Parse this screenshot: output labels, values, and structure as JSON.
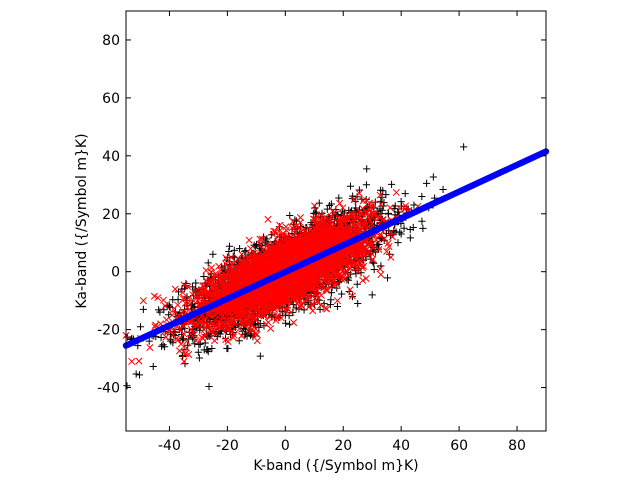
{
  "chart_data": {
    "type": "scatter",
    "title": "",
    "xlabel": "K-band ({/Symbol m}K)",
    "ylabel": "Ka-band ({/Symbol m}K)",
    "xlim": [
      -55,
      90
    ],
    "ylim": [
      -55,
      90
    ],
    "xticks": [
      -40,
      -20,
      0,
      20,
      40,
      60,
      80
    ],
    "yticks": [
      -40,
      -20,
      0,
      20,
      40,
      60,
      80
    ],
    "grid": false,
    "legend": "none",
    "series": [
      {
        "kind": "scatter",
        "marker": "plus",
        "color": "#000000",
        "cloud": {
          "center": [
            0,
            0
          ],
          "x_sd": 17,
          "slope": 0.47,
          "y_sd": 6.5,
          "count": 2600
        },
        "points": [
          [
            -53,
            -23
          ],
          [
            -50,
            -19
          ],
          [
            -49,
            -13
          ],
          [
            -46,
            -22
          ],
          [
            -40,
            -12
          ],
          [
            -38,
            -21
          ],
          [
            -33,
            -15
          ],
          [
            -27,
            -16
          ],
          [
            -28,
            -27
          ],
          [
            -24,
            -21
          ],
          [
            -27,
            -4
          ],
          [
            -19,
            -8
          ],
          [
            -14,
            -5
          ],
          [
            -4,
            -9
          ],
          [
            2,
            -8
          ],
          [
            8,
            -10
          ],
          [
            12,
            -13
          ],
          [
            18,
            -12
          ],
          [
            25,
            -11
          ],
          [
            30,
            -8
          ],
          [
            27,
            4
          ],
          [
            33,
            2
          ],
          [
            36,
            6
          ],
          [
            40,
            13
          ],
          [
            41,
            15
          ],
          [
            38,
            18
          ],
          [
            32,
            20
          ],
          [
            28,
            22
          ],
          [
            24,
            21
          ],
          [
            22,
            17
          ],
          [
            28,
            30
          ],
          [
            14,
            15
          ],
          [
            10,
            16
          ],
          [
            5,
            13
          ],
          [
            -2,
            12
          ],
          [
            -7,
            10
          ],
          [
            -14,
            7
          ],
          [
            -20,
            5
          ],
          [
            -25,
            6
          ],
          [
            -12,
            -22
          ],
          [
            0,
            -15
          ],
          [
            16,
            -3
          ]
        ]
      },
      {
        "kind": "scatter",
        "marker": "x",
        "color": "#ff0000",
        "cloud": {
          "center": [
            0,
            0
          ],
          "x_sd": 14,
          "slope": 0.45,
          "y_sd": 5.5,
          "count": 3600
        },
        "points": [
          [
            -55,
            -22
          ],
          [
            -53,
            -31
          ],
          [
            -50,
            -23
          ],
          [
            -49,
            -10
          ],
          [
            -45,
            -19
          ],
          [
            -40,
            -20
          ],
          [
            -44,
            -9
          ],
          [
            -38,
            -6
          ],
          [
            -36,
            -25
          ],
          [
            -35,
            -31
          ],
          [
            -30,
            -14
          ],
          [
            -28,
            -20
          ],
          [
            -25,
            -13
          ],
          [
            -22,
            -3
          ],
          [
            -15,
            6
          ],
          [
            -12,
            8
          ],
          [
            -8,
            -1
          ],
          [
            0,
            -8
          ],
          [
            5,
            5
          ],
          [
            10,
            10
          ],
          [
            14,
            -6
          ],
          [
            18,
            -10
          ],
          [
            23,
            12
          ],
          [
            27,
            16
          ],
          [
            30,
            4
          ],
          [
            33,
            -1
          ],
          [
            35,
            7
          ],
          [
            37,
            12
          ],
          [
            30,
            20
          ],
          [
            20,
            18
          ],
          [
            10,
            13
          ],
          [
            0,
            8
          ],
          [
            -10,
            5
          ],
          [
            -18,
            0
          ],
          [
            -20,
            -18
          ],
          [
            -10,
            -12
          ],
          [
            4,
            -11
          ],
          [
            -4,
            14
          ]
        ]
      },
      {
        "kind": "line",
        "marker": "filled-circle",
        "color": "#0000ff",
        "x": [
          -55,
          90
        ],
        "y": [
          -25.5,
          41.5
        ]
      }
    ]
  }
}
